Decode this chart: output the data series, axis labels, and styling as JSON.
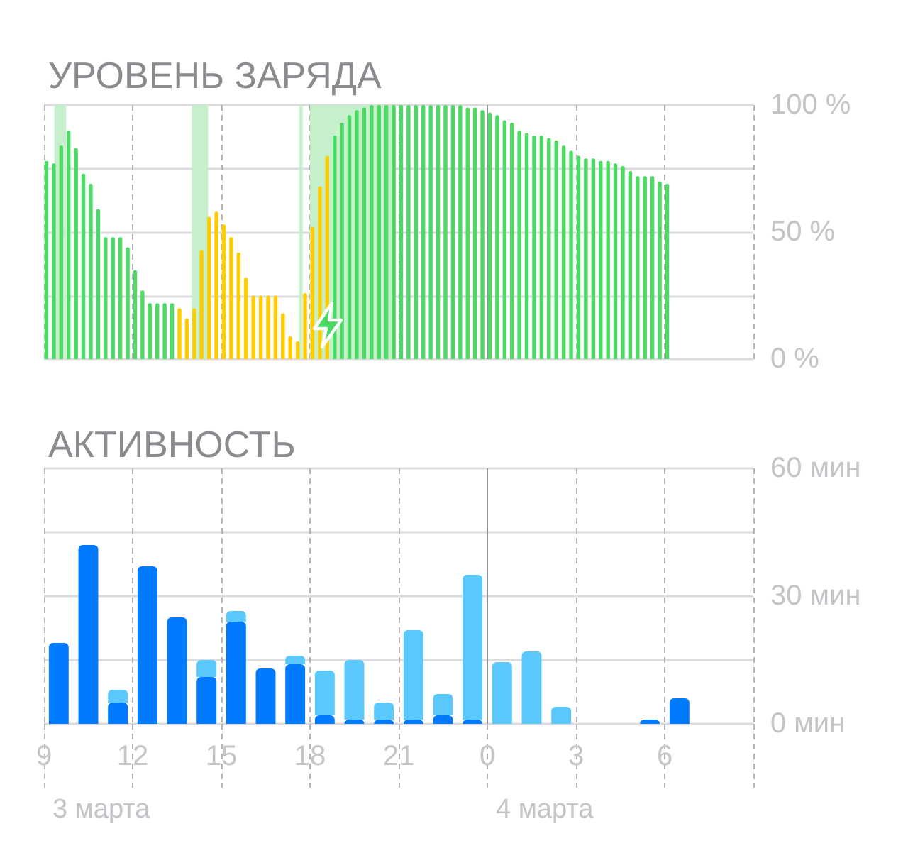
{
  "chart_data": [
    {
      "type": "bar",
      "title": "УРОВЕНЬ ЗАРЯДА",
      "x": [
        "--03-03T09:05",
        "--03-03T09:20",
        "--03-03T09:35",
        "--03-03T09:50",
        "--03-03T10:05",
        "--03-03T10:20",
        "--03-03T10:35",
        "--03-03T10:50",
        "--03-03T11:05",
        "--03-03T11:20",
        "--03-03T11:35",
        "--03-03T11:50",
        "--03-03T12:05",
        "--03-03T12:20",
        "--03-03T12:35",
        "--03-03T12:50",
        "--03-03T13:05",
        "--03-03T13:20",
        "--03-03T13:35",
        "--03-03T13:50",
        "--03-03T14:05",
        "--03-03T14:20",
        "--03-03T14:35",
        "--03-03T14:50",
        "--03-03T15:05",
        "--03-03T15:20",
        "--03-03T15:35",
        "--03-03T15:50",
        "--03-03T16:05",
        "--03-03T16:20",
        "--03-03T16:35",
        "--03-03T16:50",
        "--03-03T17:05",
        "--03-03T17:20",
        "--03-03T17:35",
        "--03-03T17:50",
        "--03-03T18:05",
        "--03-03T18:20",
        "--03-03T18:35",
        "--03-03T18:50",
        "--03-03T19:05",
        "--03-03T19:20",
        "--03-03T19:35",
        "--03-03T19:50",
        "--03-03T20:05",
        "--03-03T20:20",
        "--03-03T20:35",
        "--03-03T20:50",
        "--03-03T21:05",
        "--03-03T21:20",
        "--03-03T21:35",
        "--03-03T21:50",
        "--03-03T22:05",
        "--03-03T22:20",
        "--03-03T22:35",
        "--03-03T22:50",
        "--03-03T23:05",
        "--03-03T23:20",
        "--03-03T23:35",
        "--03-03T23:50",
        "--03-04T00:05",
        "--03-04T00:20",
        "--03-04T00:35",
        "--03-04T00:50",
        "--03-04T01:05",
        "--03-04T01:20",
        "--03-04T01:35",
        "--03-04T01:50",
        "--03-04T02:05",
        "--03-04T02:20",
        "--03-04T02:35",
        "--03-04T02:50",
        "--03-04T03:05",
        "--03-04T03:20",
        "--03-04T03:35",
        "--03-04T03:50",
        "--03-04T04:05",
        "--03-04T04:20",
        "--03-04T04:35",
        "--03-04T04:50",
        "--03-04T05:05",
        "--03-04T05:20",
        "--03-04T05:35",
        "--03-04T05:50",
        "--03-04T06:05"
      ],
      "values": [
        78,
        77,
        84,
        90,
        83,
        73,
        69,
        59,
        48,
        48,
        48,
        44,
        35,
        27,
        22,
        22,
        22,
        22,
        20,
        16,
        20,
        43,
        56,
        58,
        53,
        48,
        42,
        32,
        25,
        25,
        25,
        25,
        18,
        9,
        7,
        26,
        52,
        68,
        80,
        88,
        93,
        96,
        98,
        99,
        100,
        100,
        100,
        100,
        100,
        100,
        100,
        100,
        100,
        100,
        100,
        100,
        100,
        99,
        99,
        98,
        97,
        96,
        94,
        93,
        90,
        89,
        88,
        88,
        87,
        86,
        84,
        82,
        80,
        79,
        79,
        78,
        78,
        77,
        76,
        74,
        72,
        72,
        72,
        70,
        69
      ],
      "colors": [
        "#4cd964",
        "#4cd964",
        "#4cd964",
        "#4cd964",
        "#4cd964",
        "#4cd964",
        "#4cd964",
        "#4cd964",
        "#4cd964",
        "#4cd964",
        "#4cd964",
        "#4cd964",
        "#4cd964",
        "#4cd964",
        "#4cd964",
        "#4cd964",
        "#4cd964",
        "#4cd964",
        "#ffcc00",
        "#ffcc00",
        "#ffcc00",
        "#ffcc00",
        "#ffcc00",
        "#ffcc00",
        "#ffcc00",
        "#ffcc00",
        "#ffcc00",
        "#ffcc00",
        "#ffcc00",
        "#ffcc00",
        "#ffcc00",
        "#ffcc00",
        "#ffcc00",
        "#ffcc00",
        "#ffcc00",
        "#ffcc00",
        "#ffcc00",
        "#ffcc00",
        "#ffcc00",
        "#4cd964",
        "#4cd964",
        "#4cd964",
        "#4cd964",
        "#4cd964",
        "#4cd964",
        "#4cd964",
        "#4cd964",
        "#4cd964",
        "#4cd964",
        "#4cd964",
        "#4cd964",
        "#4cd964",
        "#4cd964",
        "#4cd964",
        "#4cd964",
        "#4cd964",
        "#4cd964",
        "#4cd964",
        "#4cd964",
        "#4cd964",
        "#4cd964",
        "#4cd964",
        "#4cd964",
        "#4cd964",
        "#4cd964",
        "#4cd964",
        "#4cd964",
        "#4cd964",
        "#4cd964",
        "#4cd964",
        "#4cd964",
        "#4cd964",
        "#4cd964",
        "#4cd964",
        "#4cd964",
        "#4cd964",
        "#4cd964",
        "#4cd964",
        "#4cd964",
        "#4cd964",
        "#4cd964",
        "#4cd964",
        "#4cd964",
        "#4cd964",
        "#4cd964"
      ],
      "xlim": [
        "--03-03T09:00",
        "--03-04T09:00"
      ],
      "xticks": [
        "--03-03T09:00",
        "--03-03T12:00",
        "--03-03T15:00",
        "--03-03T18:00",
        "--03-03T21:00",
        "--03-04T00:00",
        "--03-04T03:00",
        "--03-04T06:00",
        "--03-04T09:00"
      ],
      "ylim": [
        0,
        100
      ],
      "yticks": [
        {
          "value": 0,
          "label": "0 %"
        },
        {
          "value": 25,
          "label": null
        },
        {
          "value": 50,
          "label": "50 %"
        },
        {
          "value": 75,
          "label": null
        },
        {
          "value": 100,
          "label": "100 %"
        }
      ],
      "bands": [
        {
          "axis": "x",
          "from": "--03-03T09:21",
          "to": "--03-03T09:45",
          "color": "#c6f0cc"
        },
        {
          "axis": "x",
          "from": "--03-03T14:00",
          "to": "--03-03T14:33",
          "color": "#c6f0cc"
        },
        {
          "axis": "x",
          "from": "--03-03T17:38",
          "to": "--03-03T17:45",
          "color": "#c6f0cc"
        },
        {
          "axis": "x",
          "from": "--03-03T18:00",
          "to": "--03-03T20:48",
          "color": "#c6f0cc"
        }
      ],
      "ref_lines": [
        {
          "axis": "x",
          "value": "--03-04T00:00",
          "color": "#8e8e93"
        }
      ],
      "grid": true,
      "tick_labels": "y"
    },
    {
      "type": "bar",
      "title": "АКТИВНОСТЬ",
      "x": [
        "--03-03T09:30",
        "--03-03T10:30",
        "--03-03T11:30",
        "--03-03T12:30",
        "--03-03T13:30",
        "--03-03T14:30",
        "--03-03T15:30",
        "--03-03T16:30",
        "--03-03T17:30",
        "--03-03T18:30",
        "--03-03T19:30",
        "--03-03T20:30",
        "--03-03T21:30",
        "--03-03T22:30",
        "--03-03T23:30",
        "--03-04T00:30",
        "--03-04T01:30",
        "--03-04T02:30",
        "--03-04T03:30",
        "--03-04T04:30",
        "--03-04T05:30",
        "--03-04T06:30"
      ],
      "stacked": true,
      "series": [
        {
          "color": "#007aff",
          "values": [
            19,
            42,
            5,
            37,
            25,
            11,
            24,
            13,
            14,
            2,
            1,
            1,
            1,
            2,
            1,
            null,
            null,
            null,
            null,
            null,
            1,
            6
          ]
        },
        {
          "color": "#5ac8fa",
          "values": [
            null,
            null,
            3,
            null,
            null,
            4,
            2.5,
            null,
            2,
            10.5,
            14,
            4,
            21,
            5,
            34,
            14.5,
            17,
            4,
            null,
            null,
            null,
            null
          ]
        }
      ],
      "xlim": [
        "--03-03T09:00",
        "--03-04T09:00"
      ],
      "xticks": [
        {
          "value": "--03-03T09:00",
          "label": "9"
        },
        {
          "value": "--03-03T12:00",
          "label": "12"
        },
        {
          "value": "--03-03T15:00",
          "label": "15"
        },
        {
          "value": "--03-03T18:00",
          "label": "18"
        },
        {
          "value": "--03-03T21:00",
          "label": "21"
        },
        {
          "value": "--03-04T00:00",
          "label": "0"
        },
        {
          "value": "--03-04T03:00",
          "label": "3"
        },
        {
          "value": "--03-04T06:00",
          "label": "6"
        },
        {
          "value": "--03-04T09:00",
          "label": null
        }
      ],
      "ylim": [
        0,
        60
      ],
      "yticks": [
        {
          "value": 0,
          "label": "0 мин"
        },
        {
          "value": 15,
          "label": null
        },
        {
          "value": 30,
          "label": "30 мин"
        },
        {
          "value": 45,
          "label": null
        },
        {
          "value": 60,
          "label": "60 мин"
        }
      ],
      "ref_lines": [
        {
          "axis": "x",
          "value": "--03-04T00:00",
          "color": "#8e8e93"
        }
      ],
      "annotations": [
        "3 марта",
        "4 марта"
      ],
      "grid": true
    }
  ]
}
